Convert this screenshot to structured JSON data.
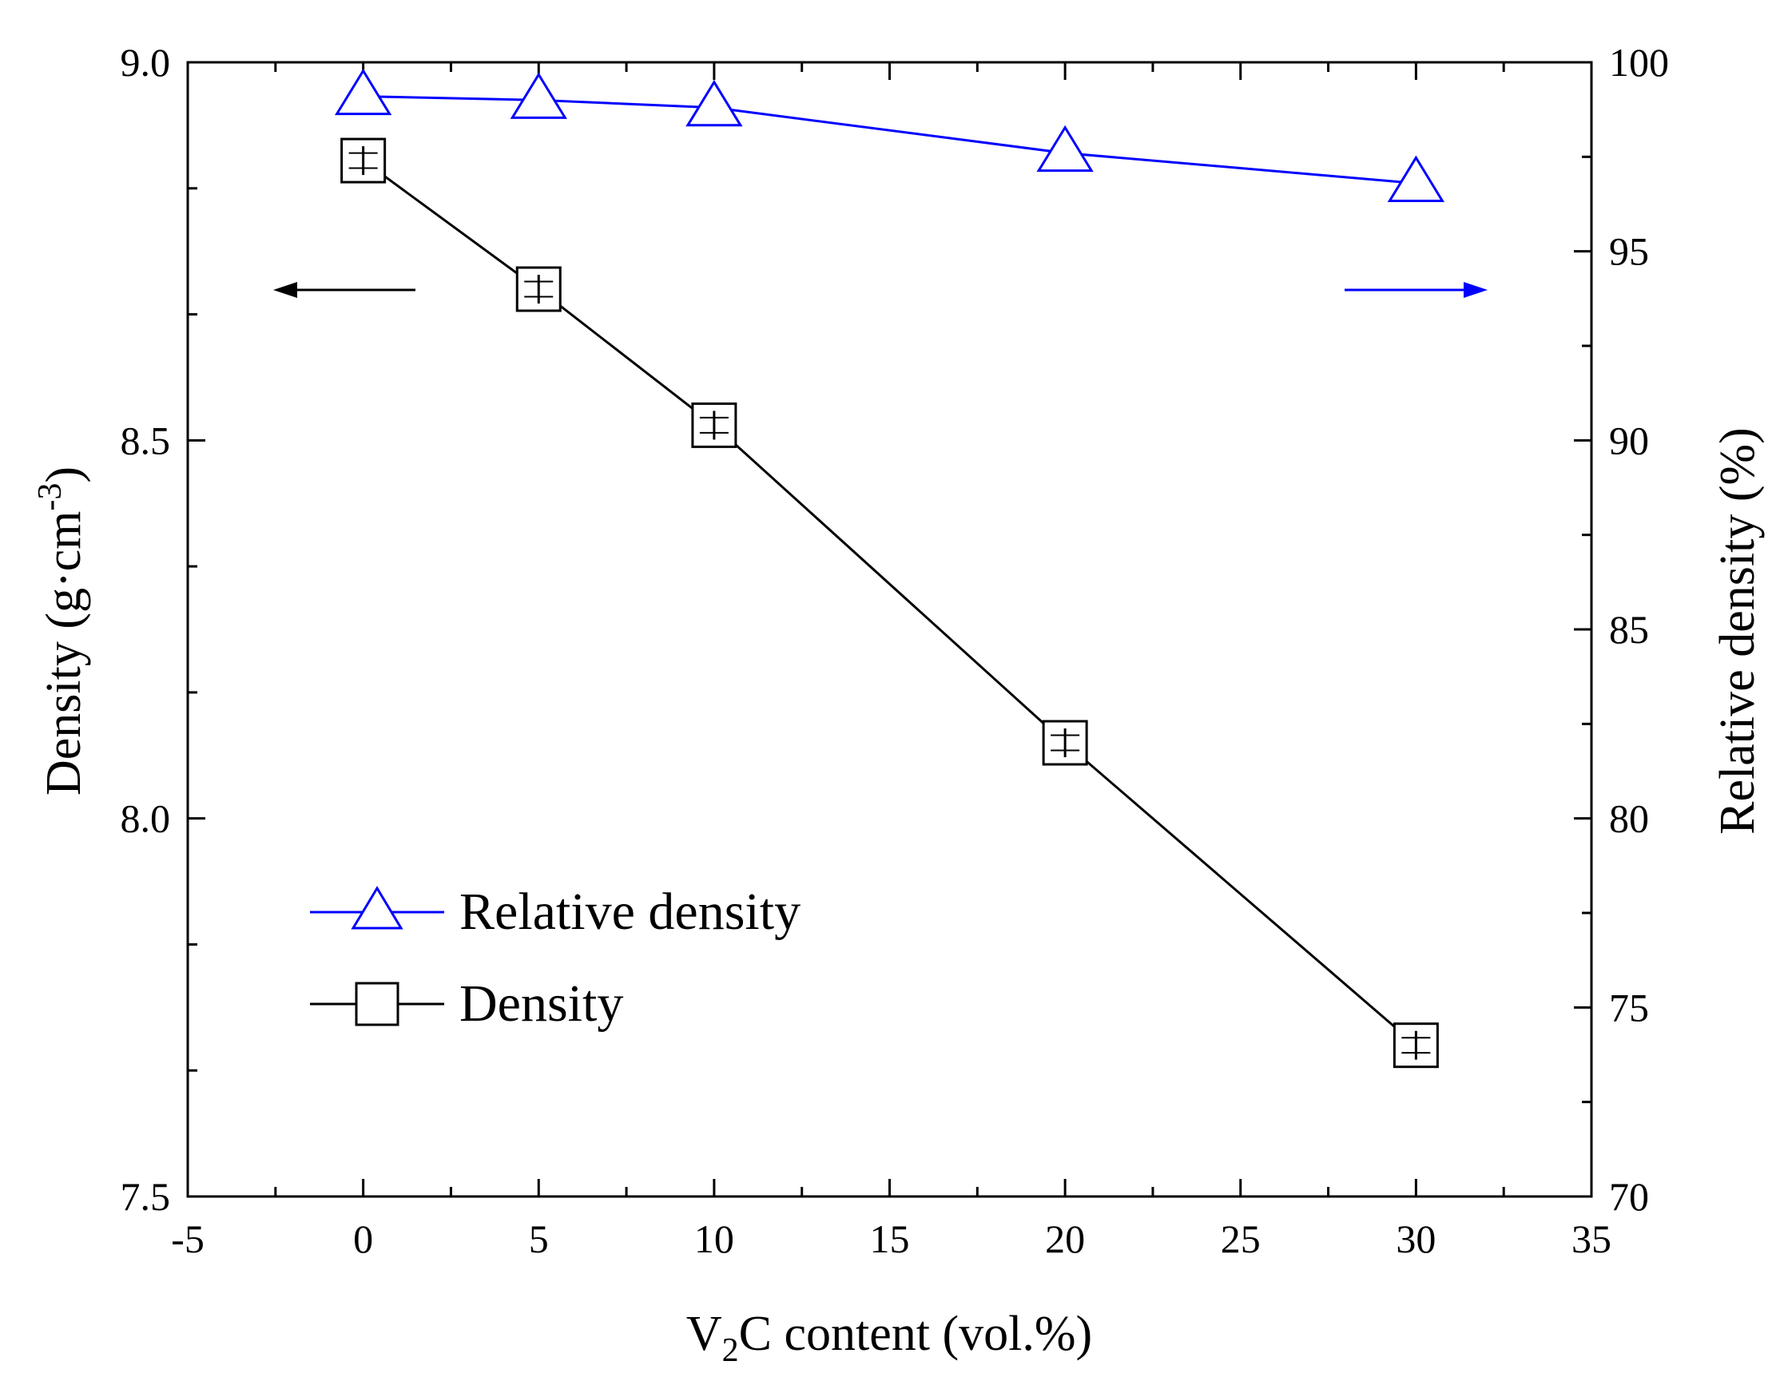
{
  "chart_data": {
    "type": "line",
    "title": "",
    "xlabel": "V2C content (vol.%)",
    "xlabel_main": "V",
    "xlabel_sub": "2",
    "xlabel_rest": "C content (vol.%)",
    "ylabel": "Density (g·cm-3)",
    "ylabel_main": "Density (g·cm",
    "ylabel_sup": "-3",
    "ylabel_close": ")",
    "y2label": "Relative density (%)",
    "xlim": [
      -5,
      35
    ],
    "ylim": [
      7.5,
      9.0
    ],
    "y2lim": [
      70,
      100
    ],
    "xticks": [
      "-5",
      "0",
      "5",
      "10",
      "15",
      "20",
      "25",
      "30",
      "35"
    ],
    "xtick_values": [
      -5,
      0,
      5,
      10,
      15,
      20,
      25,
      30,
      35
    ],
    "yticks": [
      "7.5",
      "8.0",
      "8.5",
      "9.0"
    ],
    "ytick_values": [
      7.5,
      8.0,
      8.5,
      9.0
    ],
    "y2ticks": [
      "70",
      "75",
      "80",
      "85",
      "90",
      "95",
      "100"
    ],
    "y2tick_values": [
      70,
      75,
      80,
      85,
      90,
      95,
      100
    ],
    "x": [
      0,
      5,
      10,
      20,
      30
    ],
    "series": [
      {
        "name": "Relative density",
        "axis": "right",
        "marker": "triangle",
        "color": "#0000ff",
        "values": [
          99.1,
          99.0,
          98.8,
          97.6,
          96.8
        ]
      },
      {
        "name": "Density",
        "axis": "left",
        "marker": "square",
        "color": "#000000",
        "values": [
          8.87,
          8.7,
          8.52,
          8.1,
          7.7
        ],
        "error": [
          0.01,
          0.01,
          0.01,
          0.01,
          0.01
        ]
      }
    ],
    "legend_position": "lower-left",
    "annotations": [
      {
        "type": "arrow",
        "direction": "left",
        "color": "#000000",
        "meaning": "left axis"
      },
      {
        "type": "arrow",
        "direction": "right",
        "color": "#0000ff",
        "meaning": "right axis"
      }
    ]
  }
}
